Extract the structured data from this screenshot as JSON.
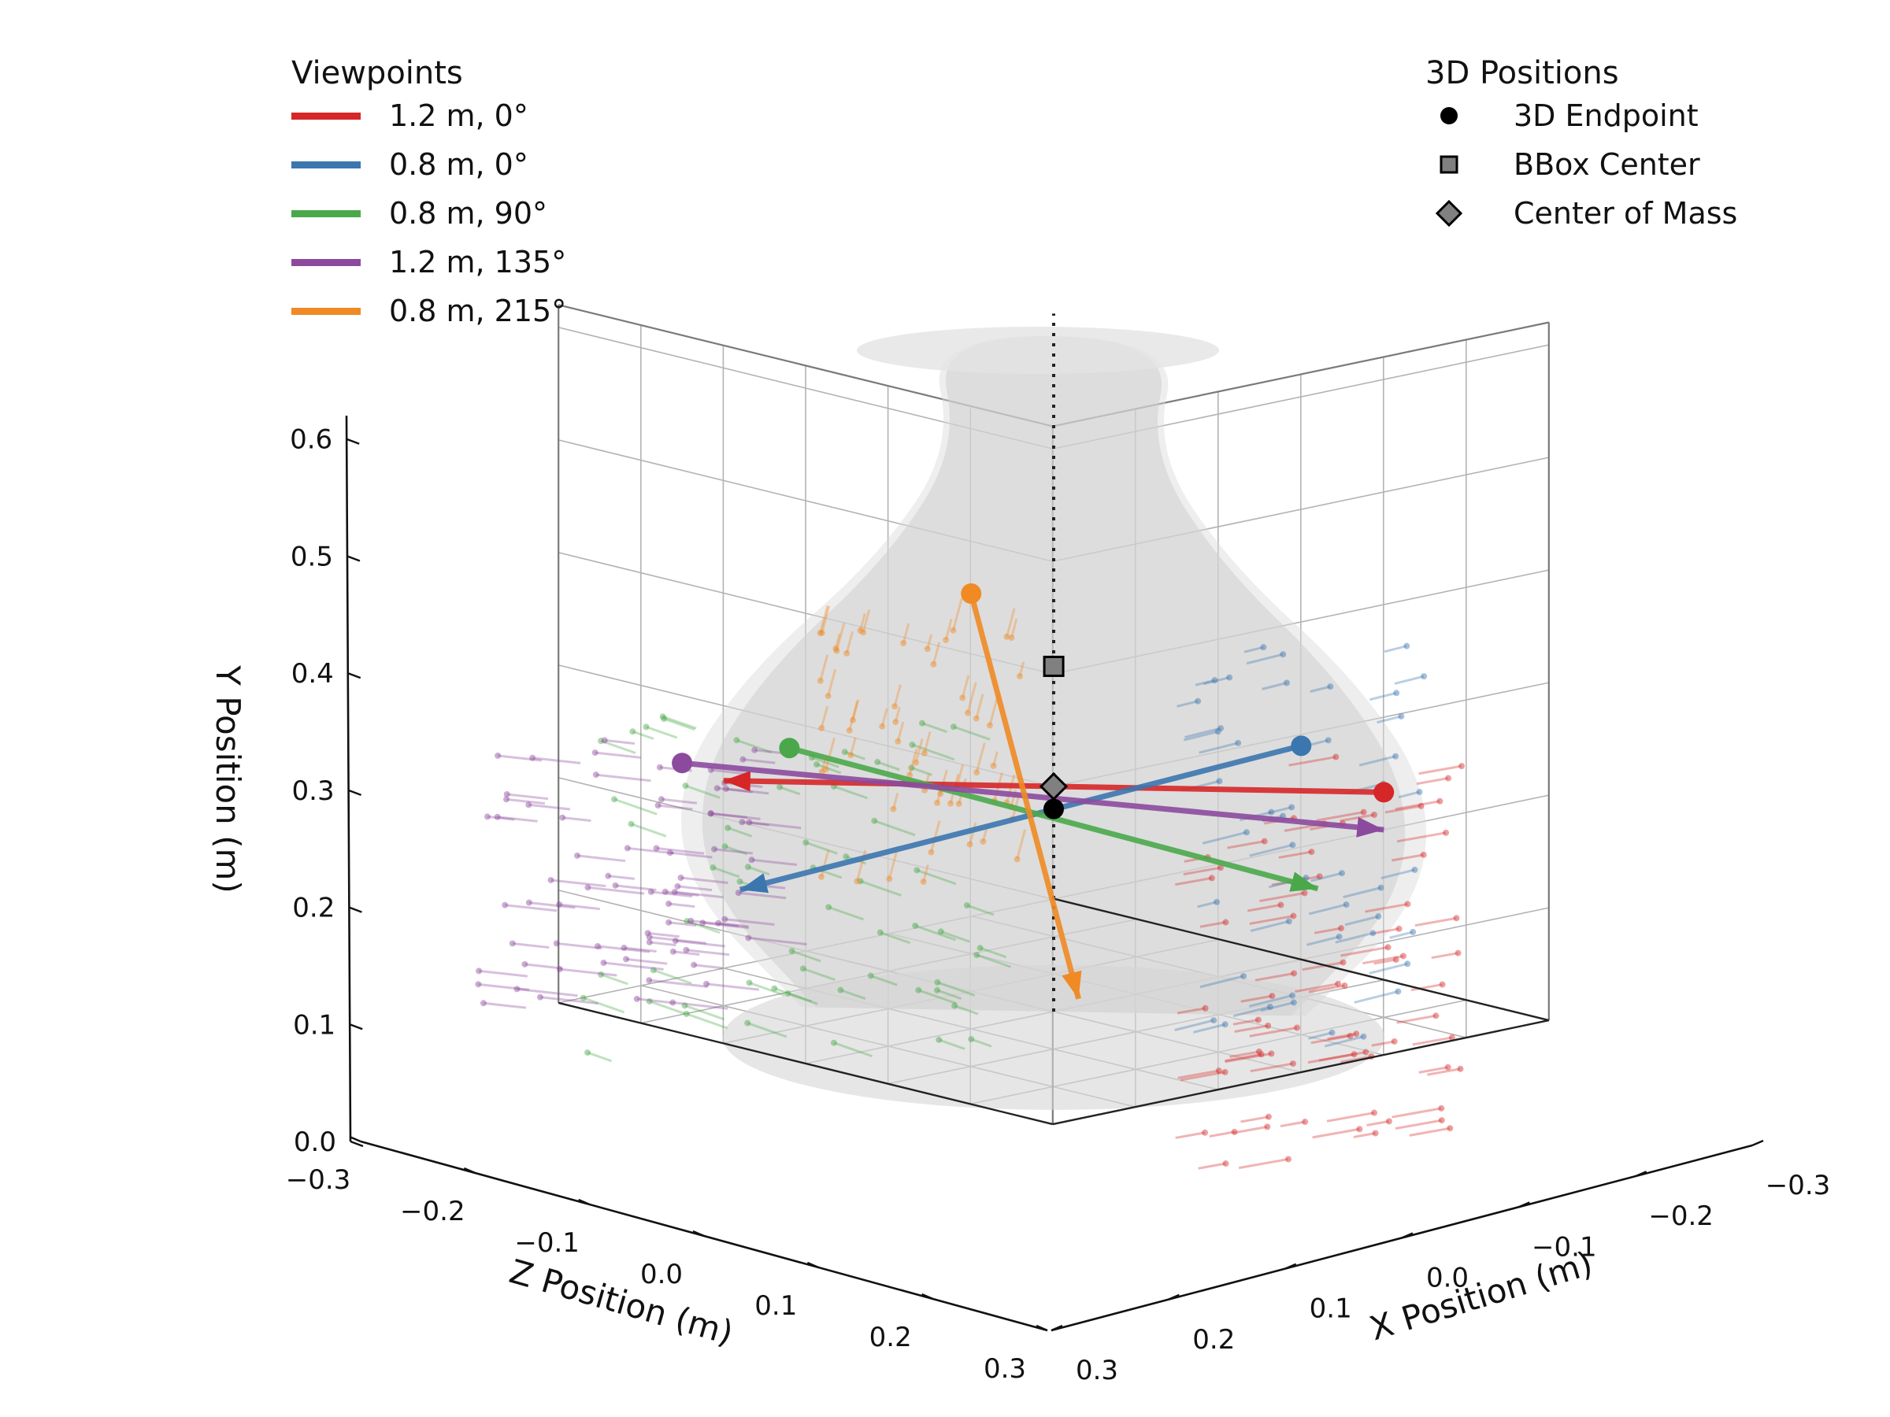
{
  "chart_data": {
    "type": "3d-scatter-vectors",
    "axes": {
      "x": {
        "label": "X Position (m)",
        "range": [
          -0.3,
          0.3
        ],
        "ticks": [
          -0.3,
          -0.2,
          -0.1,
          0.0,
          0.1,
          0.2,
          0.3
        ],
        "tick_labels": [
          "−0.3",
          "−0.2",
          "−0.1",
          "0.0",
          "0.1",
          "0.2",
          "0.3"
        ]
      },
      "y": {
        "label": "Y Position (m)",
        "range": [
          0.0,
          0.6
        ],
        "ticks": [
          0.0,
          0.1,
          0.2,
          0.3,
          0.4,
          0.5,
          0.6
        ],
        "tick_labels": [
          "0.0",
          "0.1",
          "0.2",
          "0.3",
          "0.4",
          "0.5",
          "0.6"
        ]
      },
      "z": {
        "label": "Z Position (m)",
        "range": [
          -0.3,
          0.3
        ],
        "ticks": [
          -0.3,
          -0.2,
          -0.1,
          0.0,
          0.1,
          0.2,
          0.3
        ],
        "tick_labels": [
          "−0.3",
          "−0.2",
          "−0.1",
          "0.0",
          "0.1",
          "0.2",
          "0.3"
        ]
      }
    },
    "grid": true,
    "viewpoints_legend": {
      "title": "Viewpoints",
      "placement": "top-left",
      "entries": [
        {
          "label": "1.2 m, 0°",
          "color": "#d62728"
        },
        {
          "label": "0.8 m, 0°",
          "color": "#3b76af"
        },
        {
          "label": "0.8 m, 90°",
          "color": "#4aa84a"
        },
        {
          "label": "1.2 m, 135°",
          "color": "#8c4a9e"
        },
        {
          "label": "0.8 m, 215°",
          "color": "#f08a24"
        }
      ]
    },
    "positions_legend": {
      "title": "3D Positions",
      "placement": "top-right",
      "entries": [
        {
          "label": "3D Endpoint",
          "marker": "circle",
          "color": "#000000"
        },
        {
          "label": "BBox Center",
          "marker": "square",
          "color": "#808080"
        },
        {
          "label": "Center of Mass",
          "marker": "diamond",
          "color": "#808080"
        }
      ]
    },
    "vase_profile": {
      "note": "shaded object silhouette",
      "radius_at_height": [
        [
          0.0,
          0.2
        ],
        [
          0.1,
          0.29
        ],
        [
          0.2,
          0.3
        ],
        [
          0.3,
          0.24
        ],
        [
          0.4,
          0.14
        ],
        [
          0.5,
          0.08
        ],
        [
          0.6,
          0.1
        ]
      ]
    },
    "vertical_reference_line": {
      "x": 0.0,
      "z": 0.0,
      "y_range": [
        0.0,
        0.62
      ]
    },
    "points": {
      "endpoint": {
        "x": 0.0,
        "y": 0.18,
        "z": 0.0
      },
      "bbox_center": {
        "x": 0.02,
        "y": 0.3,
        "z": 0.02
      },
      "center_of_mass": {
        "x": 0.0,
        "y": 0.2,
        "z": 0.0
      }
    },
    "viewpoint_arrows": [
      {
        "label": "1.2 m, 0°",
        "start": {
          "x": -0.2,
          "y": 0.2,
          "z": 0.2
        },
        "end": {
          "x": 0.2,
          "y": 0.2,
          "z": -0.2
        }
      },
      {
        "label": "0.8 m, 0°",
        "start": {
          "x": -0.18,
          "y": 0.25,
          "z": 0.12
        },
        "end": {
          "x": 0.2,
          "y": 0.1,
          "z": -0.18
        }
      },
      {
        "label": "0.8 m, 90°",
        "start": {
          "x": 0.1,
          "y": 0.25,
          "z": -0.22
        },
        "end": {
          "x": -0.12,
          "y": 0.1,
          "z": 0.2
        }
      },
      {
        "label": "1.2 m, 135°",
        "start": {
          "x": 0.15,
          "y": 0.24,
          "z": -0.3
        },
        "end": {
          "x": -0.15,
          "y": 0.15,
          "z": 0.25
        }
      },
      {
        "label": "0.8 m, 215°",
        "start": {
          "x": 0.05,
          "y": 0.37,
          "z": -0.05
        },
        "end": {
          "x": 0.02,
          "y": 0.0,
          "z": 0.05
        }
      }
    ]
  }
}
